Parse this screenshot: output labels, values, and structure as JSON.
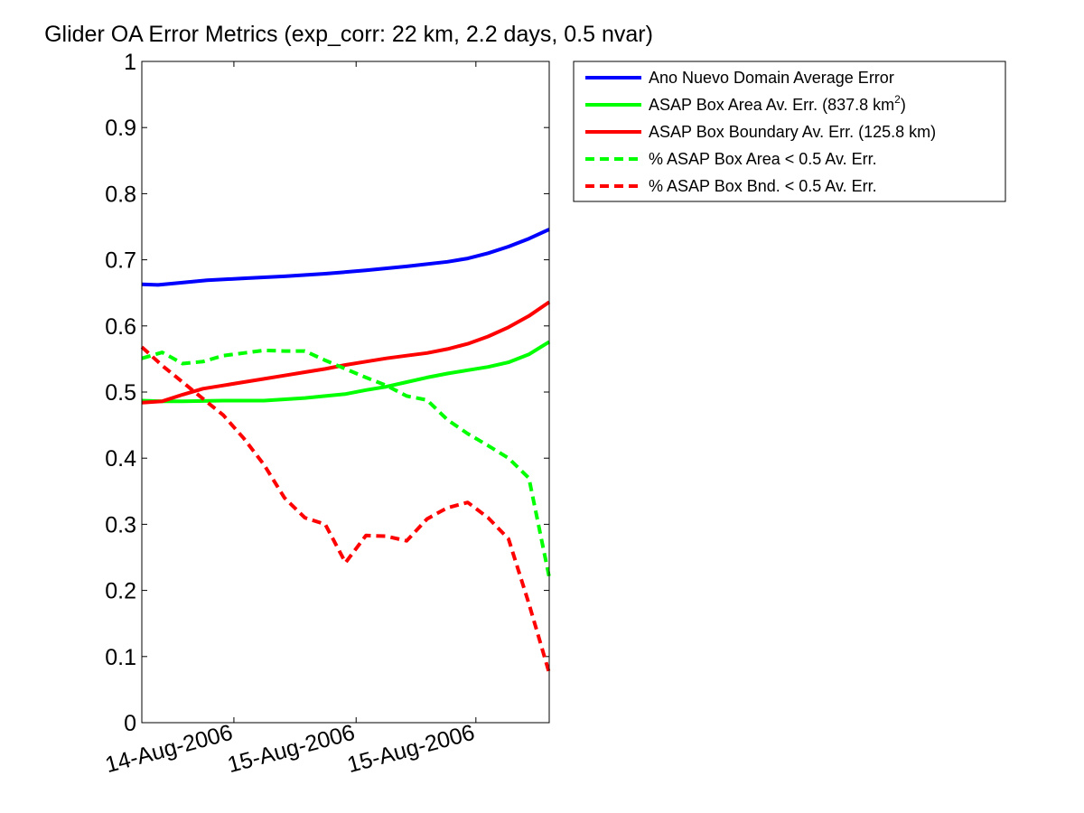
{
  "chart_data": {
    "type": "line",
    "title": "Glider OA Error Metrics (exp_corr: 22 km, 2.2 days, 0.5 nvar)",
    "xlabel": "",
    "ylabel": "",
    "ylim": [
      0,
      1
    ],
    "xlim": [
      0,
      1
    ],
    "yticks": [
      0,
      0.1,
      0.2,
      0.3,
      0.4,
      0.5,
      0.6,
      0.7,
      0.8,
      0.9,
      1
    ],
    "ytick_labels": [
      "0",
      "0.1",
      "0.2",
      "0.3",
      "0.4",
      "0.5",
      "0.6",
      "0.7",
      "0.8",
      "0.9",
      "1"
    ],
    "xticks": [
      0.226,
      0.526,
      0.82
    ],
    "xtick_labels": [
      "14-Aug-2006",
      "15-Aug-2006",
      "15-Aug-2006"
    ],
    "grid": false,
    "legend_position": "outside-right",
    "series": [
      {
        "name": "Ano Nuevo Domain Average Error",
        "color": "#0000ff",
        "style": "solid",
        "x": [
          0,
          0.04,
          0.09,
          0.16,
          0.25,
          0.35,
          0.45,
          0.55,
          0.65,
          0.75,
          0.8,
          0.85,
          0.9,
          0.95,
          1.0
        ],
        "y": [
          0.663,
          0.662,
          0.665,
          0.669,
          0.672,
          0.675,
          0.679,
          0.684,
          0.69,
          0.697,
          0.702,
          0.71,
          0.72,
          0.732,
          0.746
        ]
      },
      {
        "name": "ASAP Box Area Av. Err. (837.8 km",
        "name_sup": "2",
        "name_end": ")",
        "color": "#00ff00",
        "style": "solid",
        "x": [
          0,
          0.05,
          0.1,
          0.2,
          0.3,
          0.4,
          0.45,
          0.5,
          0.55,
          0.6,
          0.65,
          0.7,
          0.75,
          0.8,
          0.85,
          0.9,
          0.95,
          1.0
        ],
        "y": [
          0.487,
          0.486,
          0.486,
          0.487,
          0.487,
          0.491,
          0.494,
          0.497,
          0.503,
          0.508,
          0.515,
          0.522,
          0.528,
          0.533,
          0.538,
          0.545,
          0.557,
          0.576
        ]
      },
      {
        "name": "ASAP Box Boundary Av. Err. (125.8 km)",
        "color": "#ff0000",
        "style": "solid",
        "x": [
          0,
          0.05,
          0.1,
          0.15,
          0.2,
          0.25,
          0.3,
          0.35,
          0.4,
          0.45,
          0.5,
          0.55,
          0.6,
          0.65,
          0.7,
          0.75,
          0.8,
          0.85,
          0.9,
          0.95,
          1.0
        ],
        "y": [
          0.484,
          0.486,
          0.496,
          0.505,
          0.51,
          0.515,
          0.52,
          0.525,
          0.53,
          0.535,
          0.541,
          0.546,
          0.551,
          0.555,
          0.559,
          0.565,
          0.573,
          0.584,
          0.598,
          0.615,
          0.636
        ]
      },
      {
        "name": "% ASAP Box Area < 0.5 Av. Err.",
        "color": "#00ff00",
        "style": "dashed",
        "x": [
          0,
          0.05,
          0.1,
          0.15,
          0.2,
          0.25,
          0.3,
          0.35,
          0.4,
          0.45,
          0.5,
          0.55,
          0.6,
          0.65,
          0.7,
          0.75,
          0.8,
          0.85,
          0.9,
          0.95,
          1.0
        ],
        "y": [
          0.551,
          0.56,
          0.543,
          0.546,
          0.555,
          0.559,
          0.563,
          0.562,
          0.562,
          0.548,
          0.535,
          0.522,
          0.51,
          0.494,
          0.488,
          0.458,
          0.437,
          0.419,
          0.4,
          0.37,
          0.22
        ]
      },
      {
        "name": "% ASAP Box Bnd. < 0.5 Av. Err.",
        "color": "#ff0000",
        "style": "dashed",
        "x": [
          0,
          0.05,
          0.1,
          0.15,
          0.2,
          0.25,
          0.3,
          0.35,
          0.4,
          0.45,
          0.5,
          0.55,
          0.6,
          0.65,
          0.7,
          0.75,
          0.8,
          0.85,
          0.9,
          0.95,
          1.0
        ],
        "y": [
          0.568,
          0.54,
          0.515,
          0.49,
          0.465,
          0.43,
          0.39,
          0.34,
          0.31,
          0.3,
          0.242,
          0.283,
          0.282,
          0.275,
          0.308,
          0.325,
          0.333,
          0.31,
          0.278,
          0.18,
          0.075
        ]
      }
    ]
  }
}
